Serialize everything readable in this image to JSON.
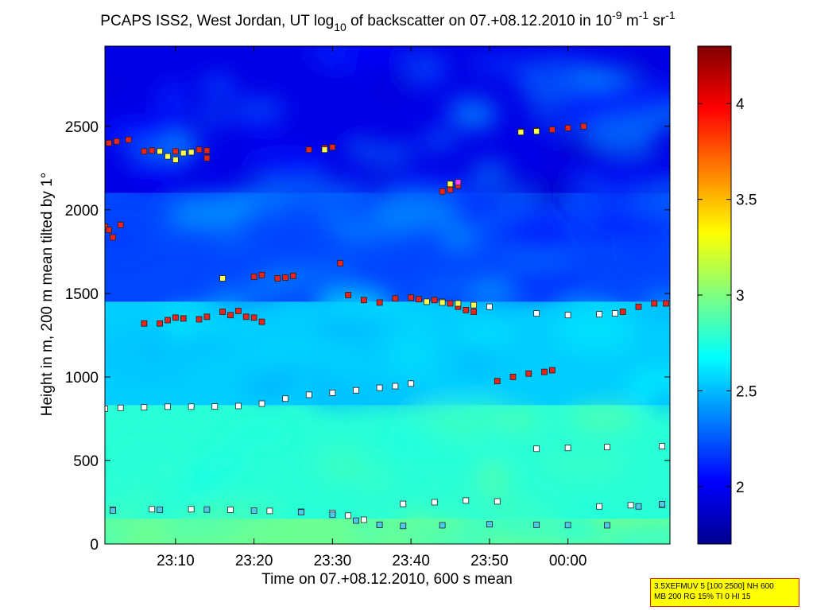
{
  "chart_data": {
    "type": "heatmap",
    "title_parts": {
      "main": "PCAPS ISS2, West Jordan, UT log",
      "sub1": "10",
      "mid": " of backscatter on 07.+08.12.2010 in 10",
      "sup1": "-9",
      "unit1": " m",
      "sup2": "-1",
      "unit2": " sr",
      "sup3": "-1"
    },
    "xlabel": "Time on 07.+08.12.2010, 600 s mean",
    "ylabel": "Height in m, 200 m mean tilted by 1°",
    "x_range_minutes": [
      1381,
      1453
    ],
    "x_ticks": [
      {
        "label": "23:10",
        "value": 1390
      },
      {
        "label": "23:20",
        "value": 1400
      },
      {
        "label": "23:30",
        "value": 1410
      },
      {
        "label": "23:40",
        "value": 1420
      },
      {
        "label": "23:50",
        "value": 1430
      },
      {
        "label": "00:00",
        "value": 1440
      }
    ],
    "y_range": [
      0,
      2980
    ],
    "y_ticks": [
      {
        "label": "0",
        "value": 0
      },
      {
        "label": "500",
        "value": 500
      },
      {
        "label": "1000",
        "value": 1000
      },
      {
        "label": "1500",
        "value": 1500
      },
      {
        "label": "2000",
        "value": 2000
      },
      {
        "label": "2500",
        "value": 2500
      }
    ],
    "colorbar": {
      "range": [
        1.7,
        4.3
      ],
      "ticks": [
        {
          "label": "2",
          "value": 2
        },
        {
          "label": "2.5",
          "value": 2.5
        },
        {
          "label": "3",
          "value": 3
        },
        {
          "label": "3.5",
          "value": 3.5
        },
        {
          "label": "4",
          "value": 4
        }
      ],
      "colormap": "jet"
    },
    "background_layers": [
      {
        "from_height": 0,
        "to_height": 150,
        "value": 2.95
      },
      {
        "from_height": 150,
        "to_height": 830,
        "value": 2.78
      },
      {
        "from_height": 830,
        "to_height": 1450,
        "value": 2.55
      },
      {
        "from_height": 1450,
        "to_height": 2100,
        "value": 2.2
      },
      {
        "from_height": 2100,
        "to_height": 2980,
        "value": 1.95
      }
    ],
    "grid": false,
    "marker_series": [
      {
        "color": "#ffffff",
        "points": [
          [
            1381,
            810
          ],
          [
            1383,
            815
          ],
          [
            1386,
            818
          ],
          [
            1389,
            822
          ],
          [
            1392,
            822
          ],
          [
            1395,
            823
          ],
          [
            1398,
            826
          ],
          [
            1401,
            840
          ],
          [
            1404,
            870
          ],
          [
            1407,
            893
          ],
          [
            1410,
            905
          ],
          [
            1413,
            920
          ],
          [
            1416,
            935
          ],
          [
            1418,
            945
          ],
          [
            1420,
            960
          ],
          [
            1382,
            205
          ],
          [
            1387,
            208
          ],
          [
            1392,
            208
          ],
          [
            1397,
            205
          ],
          [
            1402,
            198
          ],
          [
            1406,
            193
          ],
          [
            1410,
            185
          ],
          [
            1412,
            170
          ],
          [
            1414,
            145
          ],
          [
            1416,
            115
          ],
          [
            1419,
            240
          ],
          [
            1423,
            250
          ],
          [
            1427,
            260
          ],
          [
            1431,
            255
          ],
          [
            1424,
            1450
          ],
          [
            1430,
            1420
          ],
          [
            1436,
            1380
          ],
          [
            1440,
            1370
          ],
          [
            1444,
            1375
          ],
          [
            1446,
            1380
          ],
          [
            1436,
            570
          ],
          [
            1440,
            575
          ],
          [
            1445,
            580
          ],
          [
            1452,
            585
          ],
          [
            1444,
            225
          ],
          [
            1448,
            232
          ],
          [
            1452,
            235
          ]
        ]
      },
      {
        "color": "#4fc8f0",
        "points": [
          [
            1382,
            200
          ],
          [
            1388,
            205
          ],
          [
            1394,
            206
          ],
          [
            1400,
            200
          ],
          [
            1406,
            190
          ],
          [
            1410,
            175
          ],
          [
            1413,
            140
          ],
          [
            1416,
            115
          ],
          [
            1419,
            108
          ],
          [
            1424,
            112
          ],
          [
            1430,
            118
          ],
          [
            1436,
            115
          ],
          [
            1440,
            113
          ],
          [
            1445,
            112
          ],
          [
            1449,
            225
          ],
          [
            1452,
            238
          ]
        ]
      },
      {
        "color": "#e8241c",
        "points": [
          [
            1381,
            1900
          ],
          [
            1381.5,
            1880
          ],
          [
            1382,
            1835
          ],
          [
            1383,
            1910
          ],
          [
            1381.5,
            2400
          ],
          [
            1382.5,
            2410
          ],
          [
            1384,
            2420
          ],
          [
            1386,
            2350
          ],
          [
            1387,
            2355
          ],
          [
            1390,
            2350
          ],
          [
            1393,
            2360
          ],
          [
            1394,
            2310
          ],
          [
            1394,
            2355
          ],
          [
            1386,
            1320
          ],
          [
            1388,
            1320
          ],
          [
            1389,
            1340
          ],
          [
            1390,
            1355
          ],
          [
            1391,
            1350
          ],
          [
            1393,
            1345
          ],
          [
            1394,
            1360
          ],
          [
            1396,
            1390
          ],
          [
            1397,
            1370
          ],
          [
            1398,
            1395
          ],
          [
            1399,
            1360
          ],
          [
            1400,
            1355
          ],
          [
            1401,
            1330
          ],
          [
            1400,
            1600
          ],
          [
            1401,
            1610
          ],
          [
            1403,
            1590
          ],
          [
            1404,
            1595
          ],
          [
            1405,
            1605
          ],
          [
            1407,
            2360
          ],
          [
            1409,
            2370
          ],
          [
            1410,
            2375
          ],
          [
            1411,
            1680
          ],
          [
            1412,
            1490
          ],
          [
            1414,
            1460
          ],
          [
            1416,
            1445
          ],
          [
            1418,
            1470
          ],
          [
            1420,
            1475
          ],
          [
            1421,
            1465
          ],
          [
            1423,
            1460
          ],
          [
            1425,
            1440
          ],
          [
            1426,
            1420
          ],
          [
            1427,
            1400
          ],
          [
            1428,
            1390
          ],
          [
            1431,
            975
          ],
          [
            1433,
            1000
          ],
          [
            1435,
            1020
          ],
          [
            1437,
            1030
          ],
          [
            1438,
            1040
          ],
          [
            1424,
            2110
          ],
          [
            1425,
            2120
          ],
          [
            1426,
            2145
          ],
          [
            1434,
            2470
          ],
          [
            1436,
            2475
          ],
          [
            1438,
            2480
          ],
          [
            1440,
            2490
          ],
          [
            1442,
            2500
          ],
          [
            1447,
            1390
          ],
          [
            1449,
            1420
          ],
          [
            1451,
            1440
          ],
          [
            1452.5,
            1440
          ]
        ]
      },
      {
        "color": "#ffff50",
        "points": [
          [
            1388,
            2350
          ],
          [
            1389,
            2320
          ],
          [
            1390,
            2300
          ],
          [
            1391,
            2340
          ],
          [
            1392,
            2345
          ],
          [
            1396,
            1590
          ],
          [
            1409,
            2360
          ],
          [
            1422,
            1450
          ],
          [
            1424,
            1445
          ],
          [
            1426,
            1440
          ],
          [
            1428,
            1430
          ],
          [
            1434,
            2465
          ],
          [
            1436,
            2470
          ],
          [
            1425,
            2155
          ]
        ]
      },
      {
        "color": "#ff40ff",
        "points": [
          [
            1426,
            2165
          ]
        ]
      }
    ]
  },
  "info_box": {
    "line1": "3.5XEFMUV 5 [100 2500] NH 600",
    "line2": "MB 200 RG 15% TI 0 HI 15"
  }
}
